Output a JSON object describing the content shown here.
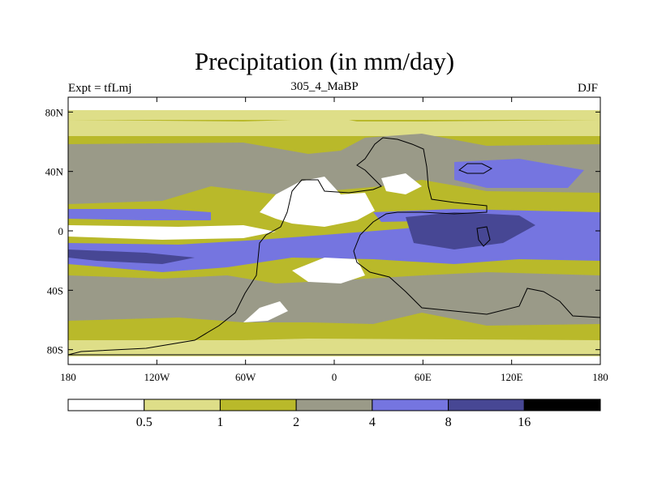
{
  "title": "Precipitation (in mm/day)",
  "experiment": "Expt = tfLmj",
  "age": "305_4_MaBP",
  "season": "DJF",
  "map": {
    "lat_ticks": [
      {
        "value": 80,
        "label": "80N"
      },
      {
        "value": 40,
        "label": "40N"
      },
      {
        "value": 0,
        "label": "0"
      },
      {
        "value": -40,
        "label": "40S"
      },
      {
        "value": -80,
        "label": "80S"
      }
    ],
    "lon_ticks": [
      {
        "value": -180,
        "label": "180"
      },
      {
        "value": -120,
        "label": "120W"
      },
      {
        "value": -60,
        "label": "60W"
      },
      {
        "value": 0,
        "label": "0"
      },
      {
        "value": 60,
        "label": "60E"
      },
      {
        "value": 120,
        "label": "120E"
      },
      {
        "value": 180,
        "label": "180"
      }
    ]
  },
  "colorbar": {
    "colors": [
      "#ffffff",
      "#dede88",
      "#b9b92a",
      "#9a9a88",
      "#7575e0",
      "#474794",
      "#000000"
    ],
    "labels": [
      "0.5",
      "1",
      "2",
      "4",
      "8",
      "16"
    ]
  }
}
